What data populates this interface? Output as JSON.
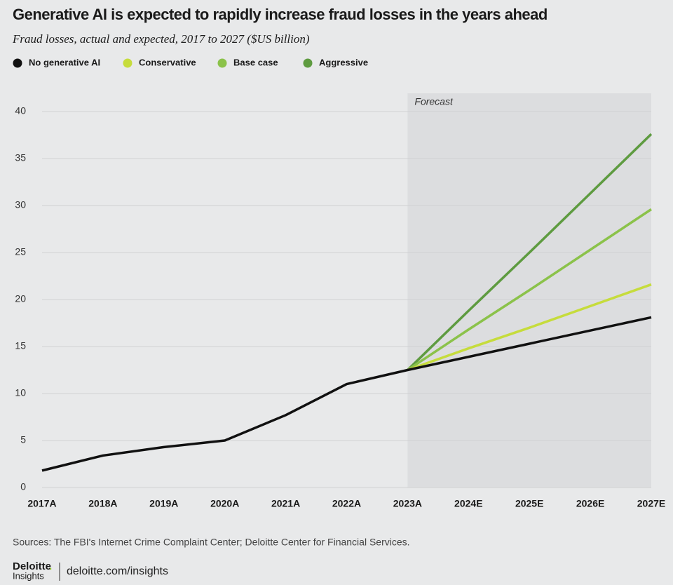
{
  "chart_data": {
    "type": "line",
    "title": "Generative AI is expected to rapidly increase fraud losses in the years ahead",
    "subtitle": "Fraud losses, actual and expected, 2017 to 2027 ($US billion)",
    "categories": [
      "2017A",
      "2018A",
      "2019A",
      "2020A",
      "2021A",
      "2022A",
      "2023A",
      "2024E",
      "2025E",
      "2026E",
      "2027E"
    ],
    "series": [
      {
        "name": "No generative AI",
        "color": "#111111",
        "values": [
          1.8,
          3.4,
          4.3,
          5.0,
          7.7,
          11.0,
          12.5,
          13.9,
          15.3,
          16.7,
          18.1
        ]
      },
      {
        "name": "Conservative",
        "color": "#c6dc3c",
        "values": [
          null,
          null,
          null,
          null,
          null,
          null,
          12.5,
          14.8,
          17.0,
          19.3,
          21.6
        ]
      },
      {
        "name": "Base case",
        "color": "#8bc24a",
        "values": [
          null,
          null,
          null,
          null,
          null,
          null,
          12.5,
          16.8,
          21.0,
          25.3,
          29.6
        ]
      },
      {
        "name": "Aggressive",
        "color": "#5e9b40",
        "values": [
          null,
          null,
          null,
          null,
          null,
          null,
          12.5,
          18.8,
          25.0,
          31.3,
          37.6
        ]
      }
    ],
    "ylim": [
      0,
      40
    ],
    "yticks": [
      0,
      5,
      10,
      15,
      20,
      25,
      30,
      35,
      40
    ],
    "grid": true,
    "shade_from": "2023A",
    "shade_label": "Forecast"
  },
  "footer": {
    "source": "Sources: The FBI's Internet Crime Complaint Center; Deloitte Center for Financial Services.",
    "brand": "Deloitte",
    "brand_dot": ".",
    "brand_sub": "Insights",
    "url": "deloitte.com/insights"
  }
}
